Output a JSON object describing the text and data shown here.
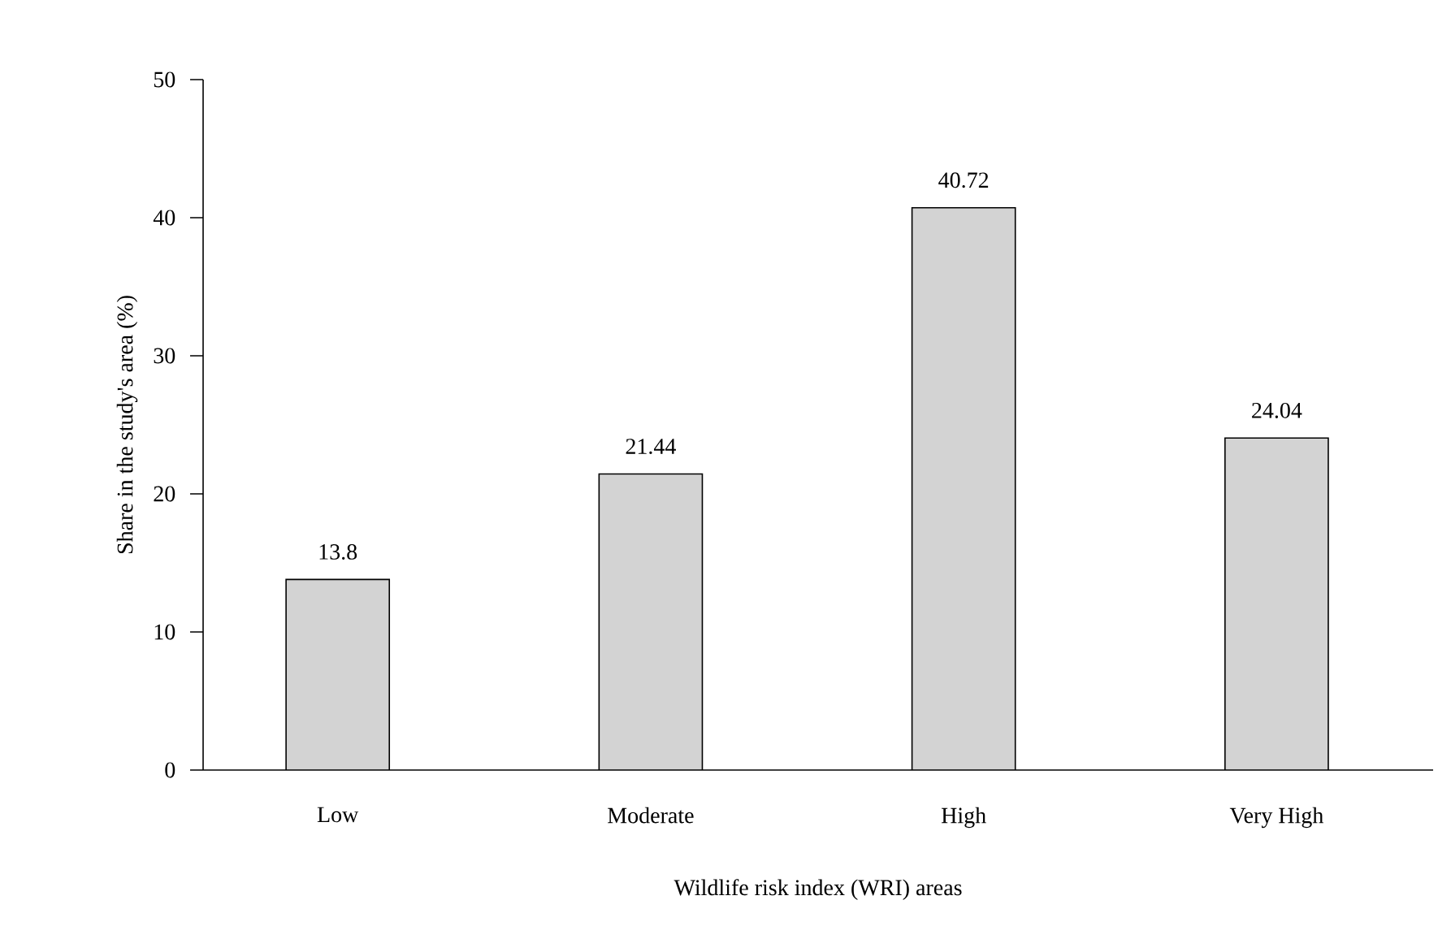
{
  "chart_data": {
    "type": "bar",
    "xlabel": "Wildlife risk index (WRI) areas",
    "ylabel": "Share in the study's area (%)",
    "categories": [
      "Low",
      "Moderate",
      "High",
      "Very High"
    ],
    "values": [
      13.8,
      21.44,
      40.72,
      24.04
    ],
    "color": "#d3d3d3",
    "ylim": [
      0,
      50
    ],
    "yticks": [
      0,
      10,
      20,
      30,
      40,
      50
    ],
    "data_labels": true
  }
}
